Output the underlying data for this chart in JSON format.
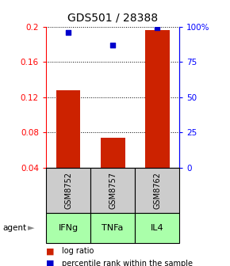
{
  "title": "GDS501 / 28388",
  "samples": [
    "GSM8752",
    "GSM8757",
    "GSM8762"
  ],
  "agents": [
    "IFNg",
    "TNFa",
    "IL4"
  ],
  "log_ratio": [
    0.128,
    0.074,
    0.196
  ],
  "percentile_rank": [
    96,
    87,
    99
  ],
  "ylim_left": [
    0.04,
    0.2
  ],
  "ylim_right": [
    0,
    100
  ],
  "yticks_left": [
    0.04,
    0.08,
    0.12,
    0.16,
    0.2
  ],
  "yticks_right": [
    0,
    25,
    50,
    75,
    100
  ],
  "bar_color": "#cc2200",
  "dot_color": "#0000cc",
  "agent_bg_color": "#aaffaa",
  "sample_bg_color": "#cccccc",
  "bar_width": 0.55
}
